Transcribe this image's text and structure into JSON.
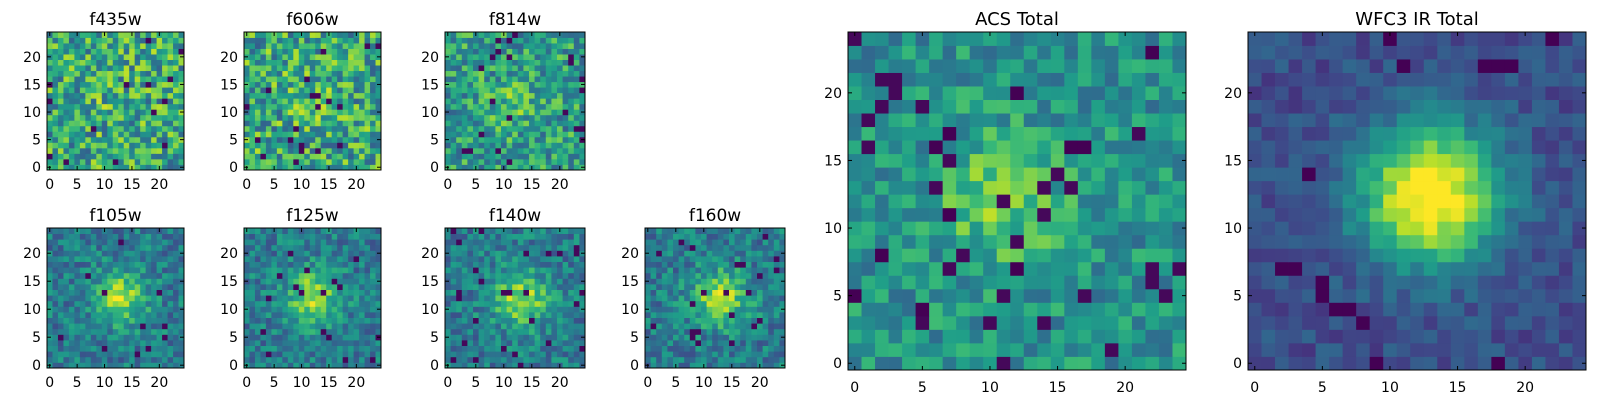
{
  "chart_data": [
    {
      "type": "heatmap",
      "title": "f435w",
      "xlabel": "",
      "ylabel": "",
      "xlim": [
        0,
        25
      ],
      "ylim": [
        0,
        25
      ],
      "xticks": [
        "0",
        "5",
        "10",
        "15",
        "20"
      ],
      "yticks": [
        "0",
        "5",
        "10",
        "15",
        "20"
      ],
      "grid_size": [
        25,
        25
      ],
      "colormap": "viridis",
      "source_profile": {
        "peak": 0.05,
        "center": [
          12,
          12
        ],
        "sigma": 3.0,
        "noise": 0.6
      }
    },
    {
      "type": "heatmap",
      "title": "f606w",
      "xlabel": "",
      "ylabel": "",
      "xlim": [
        0,
        25
      ],
      "ylim": [
        0,
        25
      ],
      "xticks": [
        "0",
        "5",
        "10",
        "15",
        "20"
      ],
      "yticks": [
        "0",
        "5",
        "10",
        "15",
        "20"
      ],
      "grid_size": [
        25,
        25
      ],
      "colormap": "viridis",
      "source_profile": {
        "peak": 0.05,
        "center": [
          12,
          12
        ],
        "sigma": 3.0,
        "noise": 0.6
      }
    },
    {
      "type": "heatmap",
      "title": "f814w",
      "xlabel": "",
      "ylabel": "",
      "xlim": [
        0,
        25
      ],
      "ylim": [
        0,
        25
      ],
      "xticks": [
        "0",
        "5",
        "10",
        "15",
        "20"
      ],
      "yticks": [
        "0",
        "5",
        "10",
        "15",
        "20"
      ],
      "grid_size": [
        25,
        25
      ],
      "colormap": "viridis",
      "source_profile": {
        "peak": 0.15,
        "center": [
          11,
          11
        ],
        "sigma": 3.0,
        "noise": 0.5
      }
    },
    {
      "type": "heatmap",
      "title": "f105w",
      "xlabel": "",
      "ylabel": "",
      "xlim": [
        0,
        25
      ],
      "ylim": [
        0,
        25
      ],
      "xticks": [
        "0",
        "5",
        "10",
        "15",
        "20"
      ],
      "yticks": [
        "0",
        "5",
        "10",
        "15",
        "20"
      ],
      "grid_size": [
        25,
        25
      ],
      "colormap": "viridis",
      "source_profile": {
        "peak": 0.45,
        "center": [
          13,
          12
        ],
        "sigma": 3.2,
        "noise": 0.35
      }
    },
    {
      "type": "heatmap",
      "title": "f125w",
      "xlabel": "",
      "ylabel": "",
      "xlim": [
        0,
        25
      ],
      "ylim": [
        0,
        25
      ],
      "xticks": [
        "0",
        "5",
        "10",
        "15",
        "20"
      ],
      "yticks": [
        "0",
        "5",
        "10",
        "15",
        "20"
      ],
      "grid_size": [
        25,
        25
      ],
      "colormap": "viridis",
      "source_profile": {
        "peak": 0.45,
        "center": [
          12,
          12
        ],
        "sigma": 3.4,
        "noise": 0.35
      }
    },
    {
      "type": "heatmap",
      "title": "f140w",
      "xlabel": "",
      "ylabel": "",
      "xlim": [
        0,
        25
      ],
      "ylim": [
        0,
        25
      ],
      "xticks": [
        "0",
        "5",
        "10",
        "15",
        "20"
      ],
      "yticks": [
        "0",
        "5",
        "10",
        "15",
        "20"
      ],
      "grid_size": [
        25,
        25
      ],
      "colormap": "viridis",
      "source_profile": {
        "peak": 0.45,
        "center": [
          13,
          12
        ],
        "sigma": 3.4,
        "noise": 0.35
      }
    },
    {
      "type": "heatmap",
      "title": "f160w",
      "xlabel": "",
      "ylabel": "",
      "xlim": [
        0,
        25
      ],
      "ylim": [
        0,
        25
      ],
      "xticks": [
        "0",
        "5",
        "10",
        "15",
        "20"
      ],
      "yticks": [
        "0",
        "5",
        "10",
        "15",
        "20"
      ],
      "grid_size": [
        25,
        25
      ],
      "colormap": "viridis",
      "source_profile": {
        "peak": 0.45,
        "center": [
          13,
          12
        ],
        "sigma": 3.4,
        "noise": 0.35
      }
    },
    {
      "type": "heatmap",
      "title": "ACS Total",
      "xlabel": "",
      "ylabel": "",
      "xlim": [
        0,
        25
      ],
      "ylim": [
        0,
        25
      ],
      "xticks": [
        "0",
        "5",
        "10",
        "15",
        "20"
      ],
      "yticks": [
        "0",
        "5",
        "10",
        "15",
        "20"
      ],
      "grid_size": [
        25,
        25
      ],
      "colormap": "viridis",
      "source_profile": {
        "peak": 0.25,
        "center": [
          11,
          12
        ],
        "sigma": 3.5,
        "noise": 0.35
      },
      "dark_pixels": [
        [
          7,
          17
        ],
        [
          6,
          16
        ],
        [
          16,
          16
        ],
        [
          17,
          16
        ],
        [
          7,
          11
        ],
        [
          12,
          7
        ],
        [
          2,
          8
        ],
        [
          0,
          5
        ],
        [
          5,
          4
        ],
        [
          22,
          23
        ],
        [
          12,
          20
        ]
      ]
    },
    {
      "type": "heatmap",
      "title": "WFC3 IR Total",
      "xlabel": "",
      "ylabel": "",
      "xlim": [
        0,
        25
      ],
      "ylim": [
        0,
        25
      ],
      "xticks": [
        "0",
        "5",
        "10",
        "15",
        "20"
      ],
      "yticks": [
        "0",
        "5",
        "10",
        "15",
        "20"
      ],
      "grid_size": [
        25,
        25
      ],
      "colormap": "viridis",
      "source_profile": {
        "peak": 0.85,
        "center": [
          13,
          12.5
        ],
        "sigma": 3.6,
        "noise": 0.18
      },
      "dark_pixels": [
        [
          2,
          7
        ],
        [
          3,
          7
        ],
        [
          5,
          6
        ],
        [
          5,
          5
        ],
        [
          6,
          4
        ],
        [
          7,
          4
        ],
        [
          8,
          3
        ],
        [
          4,
          14
        ],
        [
          18,
          22
        ],
        [
          19,
          22
        ],
        [
          17,
          22
        ],
        [
          18,
          0
        ],
        [
          9,
          0
        ],
        [
          22,
          24
        ],
        [
          10,
          24
        ],
        [
          11,
          22
        ]
      ]
    }
  ]
}
